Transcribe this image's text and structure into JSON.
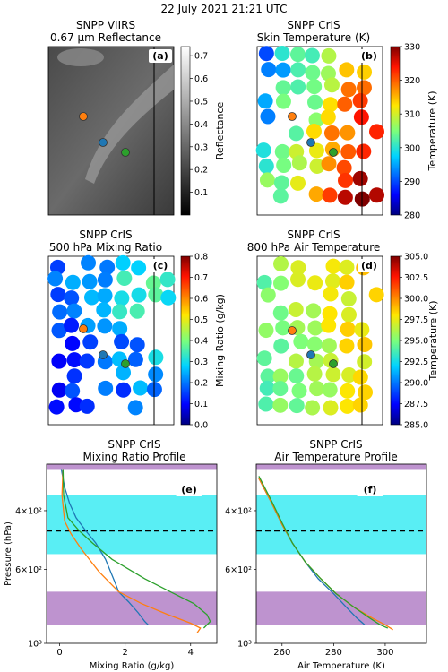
{
  "figure_title": "22 July 2021 21:21 UTC",
  "panels": {
    "a": {
      "title1": "SNPP VIIRS",
      "title2": "0.67 μm Reflectance",
      "tag": "(a)",
      "cbar_label": "Reflectance",
      "cbar_ticks": [
        "0.1",
        "0.2",
        "0.3",
        "0.4",
        "0.5",
        "0.6",
        "0.7"
      ]
    },
    "b": {
      "title1": "SNPP CrIS",
      "title2": "Skin Temperature (K)",
      "tag": "(b)",
      "cbar_label": "Temperature (K)",
      "cbar_ticks": [
        "280",
        "290",
        "300",
        "310",
        "320",
        "330"
      ]
    },
    "c": {
      "title1": "SNPP CrIS",
      "title2": "500 hPa Mixing Ratio",
      "tag": "(c)",
      "cbar_label": "Mixing Ratio (g/kg)",
      "cbar_ticks": [
        "0.0",
        "0.1",
        "0.2",
        "0.3",
        "0.4",
        "0.5",
        "0.6",
        "0.7",
        "0.8"
      ]
    },
    "d": {
      "title1": "SNPP CrIS",
      "title2": "800 hPa Air Temperature",
      "tag": "(d)",
      "cbar_label": "Temperature (K)",
      "cbar_ticks": [
        "285.0",
        "287.5",
        "290.0",
        "292.5",
        "295.0",
        "297.5",
        "300.0",
        "302.5",
        "305.0"
      ]
    },
    "e": {
      "title1": "SNPP CrIS",
      "title2": "Mixing Ratio Profile",
      "tag": "(e)"
    },
    "f": {
      "title1": "SNPP CrIS",
      "title2": "Air Temperature Profile",
      "tag": "(f)"
    }
  },
  "markers": {
    "orange": "#ff7f0e",
    "blue": "#1f77b4",
    "green": "#2ca02c"
  },
  "chart_data": [
    {
      "panel": "e",
      "type": "line",
      "xlabel": "Mixing Ratio (g/kg)",
      "ylabel": "Pressure (hPa)",
      "xlim": [
        -0.4,
        4.8
      ],
      "ylim": [
        1000,
        290
      ],
      "y_log": true,
      "xticks": [
        0,
        2,
        4
      ],
      "xtick_labels": [
        "0",
        "2",
        "4"
      ],
      "yticks": [
        400,
        600,
        1000
      ],
      "ytick_labels": [
        "4×10²",
        "6×10²",
        "10³"
      ],
      "bands": [
        {
          "from": 290,
          "to": 300,
          "color": "#9b59b6"
        },
        {
          "from": 360,
          "to": 540,
          "color": "#00e5ee"
        },
        {
          "from": 700,
          "to": 880,
          "color": "#9b59b6"
        }
      ],
      "dashed_line": 460,
      "series": [
        {
          "color": "#1f77b4",
          "points": [
            [
              0.05,
              300
            ],
            [
              0.15,
              340
            ],
            [
              0.3,
              380
            ],
            [
              0.5,
              420
            ],
            [
              0.8,
              460
            ],
            [
              1.1,
              500
            ],
            [
              1.4,
              560
            ],
            [
              1.7,
              660
            ],
            [
              1.8,
              700
            ],
            [
              2.1,
              750
            ],
            [
              2.4,
              810
            ],
            [
              2.6,
              860
            ],
            [
              2.7,
              880
            ]
          ]
        },
        {
          "color": "#ff7f0e",
          "points": [
            [
              0.1,
              300
            ],
            [
              0.07,
              360
            ],
            [
              0.15,
              430
            ],
            [
              0.35,
              470
            ],
            [
              0.65,
              520
            ],
            [
              1.2,
              610
            ],
            [
              1.8,
              700
            ],
            [
              2.5,
              760
            ],
            [
              3.3,
              820
            ],
            [
              4.0,
              870
            ],
            [
              4.3,
              900
            ],
            [
              4.2,
              930
            ]
          ]
        },
        {
          "color": "#2ca02c",
          "points": [
            [
              0.1,
              300
            ],
            [
              0.12,
              360
            ],
            [
              0.25,
              420
            ],
            [
              0.6,
              460
            ],
            [
              1.0,
              500
            ],
            [
              1.6,
              560
            ],
            [
              2.6,
              640
            ],
            [
              3.5,
              710
            ],
            [
              4.1,
              760
            ],
            [
              4.5,
              820
            ],
            [
              4.6,
              860
            ],
            [
              4.4,
              900
            ]
          ]
        }
      ]
    },
    {
      "panel": "f",
      "type": "line",
      "xlabel": "Air Temperature (K)",
      "xlim": [
        250,
        316
      ],
      "ylim": [
        1000,
        290
      ],
      "y_log": true,
      "xticks": [
        260,
        280,
        300
      ],
      "xtick_labels": [
        "260",
        "280",
        "300"
      ],
      "yticks": [
        400,
        600,
        1000
      ],
      "ytick_labels": [
        "4×10²",
        "6×10²",
        "10³"
      ],
      "bands": [
        {
          "from": 290,
          "to": 300,
          "color": "#9b59b6"
        },
        {
          "from": 360,
          "to": 540,
          "color": "#00e5ee"
        },
        {
          "from": 700,
          "to": 880,
          "color": "#9b59b6"
        }
      ],
      "dashed_line": 460,
      "series": [
        {
          "color": "#1f77b4",
          "points": [
            [
              251,
              320
            ],
            [
              256,
              380
            ],
            [
              260,
              440
            ],
            [
              264,
              500
            ],
            [
              269,
              570
            ],
            [
              274,
              640
            ],
            [
              280,
              710
            ],
            [
              285,
              780
            ],
            [
              289,
              840
            ],
            [
              292,
              880
            ]
          ]
        },
        {
          "color": "#ff7f0e",
          "points": [
            [
              251,
              320
            ],
            [
              256,
              380
            ],
            [
              260,
              440
            ],
            [
              264,
              500
            ],
            [
              269,
              570
            ],
            [
              275,
              640
            ],
            [
              281,
              710
            ],
            [
              288,
              780
            ],
            [
              295,
              840
            ],
            [
              300,
              880
            ],
            [
              303,
              910
            ]
          ]
        },
        {
          "color": "#2ca02c",
          "points": [
            [
              251,
              315
            ],
            [
              256,
              375
            ],
            [
              260,
              435
            ],
            [
              264,
              500
            ],
            [
              269,
              570
            ],
            [
              275,
              640
            ],
            [
              281,
              710
            ],
            [
              288,
              780
            ],
            [
              294,
              840
            ],
            [
              298,
              880
            ],
            [
              301,
              900
            ]
          ]
        }
      ]
    }
  ]
}
